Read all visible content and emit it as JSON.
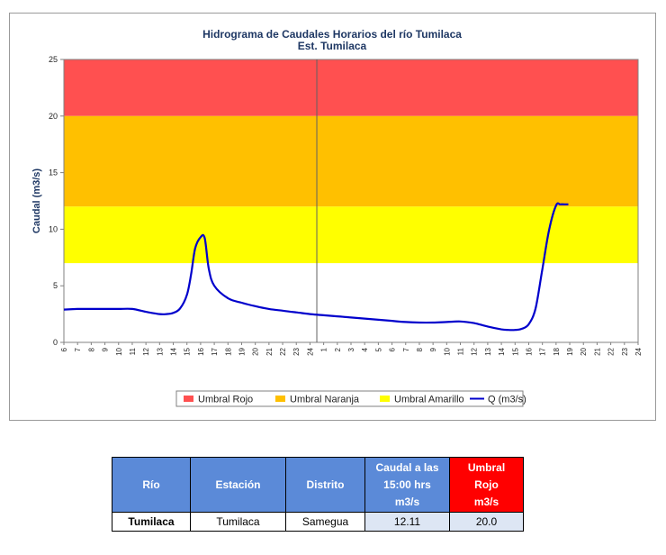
{
  "chart_data": {
    "type": "line",
    "title": "Hidrograma de Caudales Horarios del río Tumilaca",
    "subtitle": "Est. Tumilaca",
    "ylabel": "Caudal  (m3/s)",
    "xlabel": "",
    "ylim": [
      0,
      25
    ],
    "yticks": [
      "0",
      "5",
      "10",
      "15",
      "20",
      "25"
    ],
    "xtick_labels": [
      "6",
      "7",
      "8",
      "9",
      "10",
      "11",
      "12",
      "13",
      "14",
      "15",
      "16",
      "17",
      "18",
      "19",
      "20",
      "21",
      "22",
      "23",
      "24",
      "1",
      "2",
      "3",
      "4",
      "5",
      "6",
      "7",
      "8",
      "9",
      "10",
      "11",
      "12",
      "13",
      "14",
      "15",
      "16",
      "17",
      "18",
      "19",
      "20",
      "21",
      "22",
      "23",
      "24"
    ],
    "bands": [
      {
        "name": "Umbral Rojo",
        "from": 20,
        "to": 25,
        "color": "#ff5050"
      },
      {
        "name": "Umbral Naranja",
        "from": 12,
        "to": 20,
        "color": "#ffc000"
      },
      {
        "name": "Umbral Amarillo",
        "from": 7,
        "to": 12,
        "color": "#ffff00"
      }
    ],
    "series": [
      {
        "name": "Q (m3/s)",
        "color": "#0000cc",
        "x": [
          0,
          1,
          2,
          3,
          4,
          5,
          6,
          7,
          7.5,
          8,
          8.5,
          9,
          9.3,
          9.6,
          10,
          10.3,
          10.6,
          11,
          12,
          13,
          14,
          15,
          16,
          17,
          18,
          19,
          20,
          21,
          22,
          23,
          24,
          25,
          26,
          27,
          28,
          29,
          30,
          31,
          32,
          32.5,
          33,
          33.5,
          34,
          34.5,
          35,
          35.5,
          36,
          36.3,
          36.6,
          36.9
        ],
        "values": [
          2.9,
          2.95,
          2.95,
          2.95,
          2.95,
          2.95,
          2.7,
          2.5,
          2.5,
          2.6,
          3.0,
          4.2,
          6.0,
          8.3,
          9.3,
          9.2,
          6.5,
          5.0,
          3.9,
          3.5,
          3.2,
          2.95,
          2.8,
          2.65,
          2.5,
          2.4,
          2.3,
          2.2,
          2.1,
          2.0,
          1.9,
          1.8,
          1.75,
          1.75,
          1.8,
          1.85,
          1.7,
          1.4,
          1.15,
          1.1,
          1.1,
          1.2,
          1.6,
          3.0,
          6.5,
          10.0,
          12.1,
          12.2,
          12.2,
          12.2
        ]
      }
    ],
    "divider_x": 18.5,
    "legend_position": "bottom"
  },
  "table": {
    "headers": {
      "rio": "Río",
      "estacion": "Estación",
      "distrito": "Distrito",
      "caudal_1": "Caudal a las",
      "caudal_2": "15:00 hrs",
      "caudal_3": "m3/s",
      "umbral_1": "Umbral",
      "umbral_2": "Rojo",
      "umbral_3": "m3/s"
    },
    "row": {
      "rio": "Tumilaca",
      "estacion": "Tumilaca",
      "distrito": "Samegua",
      "caudal": "12.11",
      "umbral": "20.0"
    }
  }
}
